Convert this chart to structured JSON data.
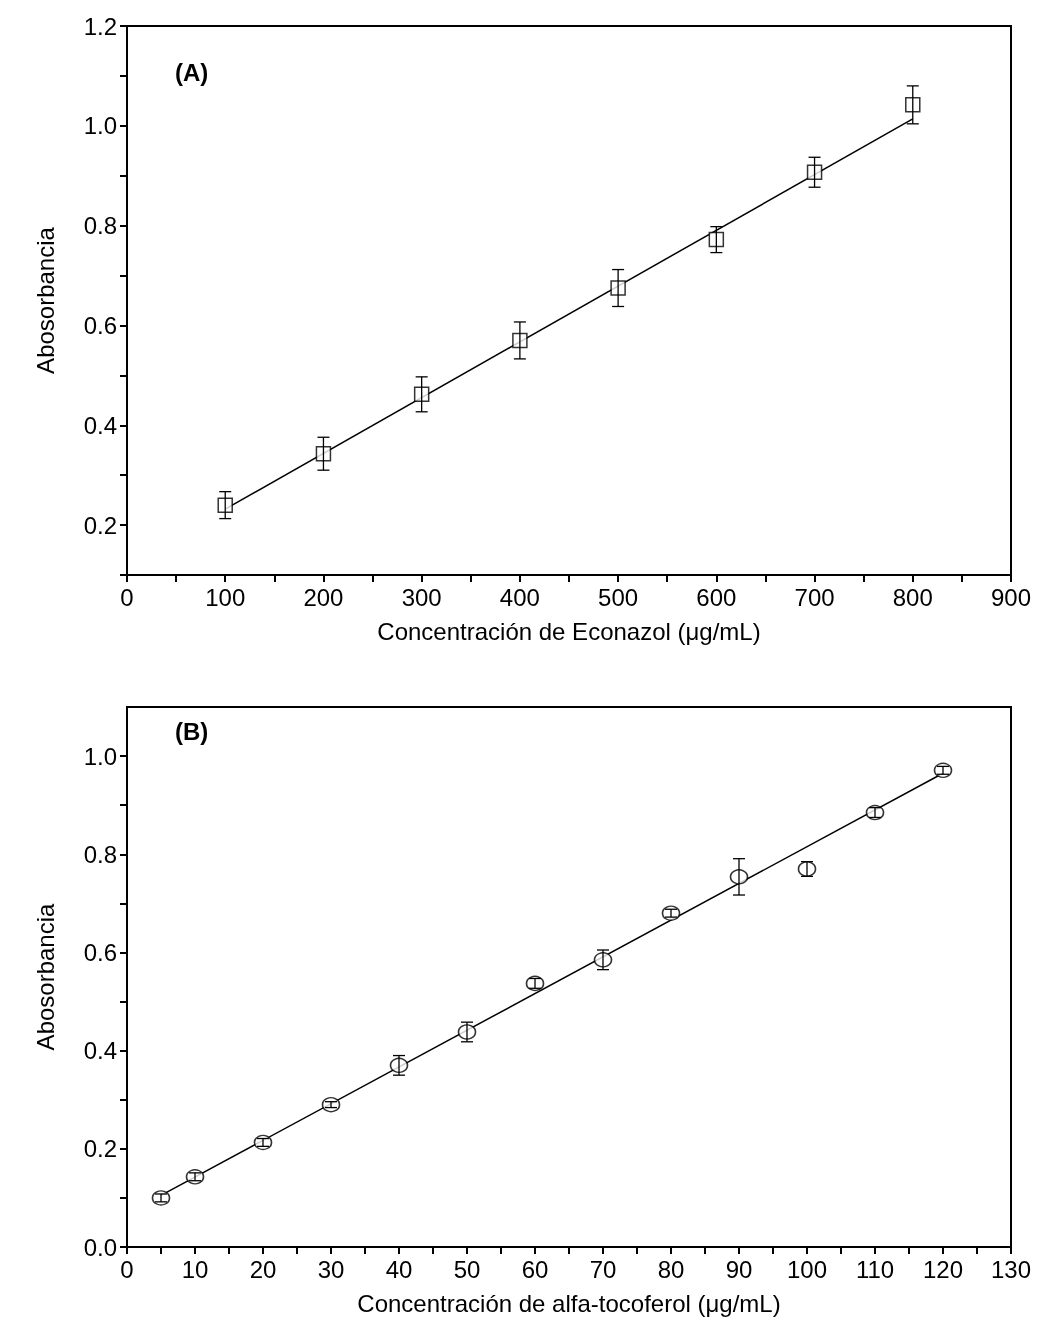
{
  "chart_data": [
    {
      "type": "scatter",
      "xlabel": "Concentración de Econazol (μg/mL)",
      "ylabel": "Abosorbancia",
      "annotations": [
        "(A)"
      ],
      "xlim": [
        0,
        900
      ],
      "xticks": [
        0,
        {
          "value": 50,
          "label": null
        },
        100,
        {
          "value": 150,
          "label": null
        },
        200,
        {
          "value": 250,
          "label": null
        },
        300,
        {
          "value": 350,
          "label": null
        },
        400,
        {
          "value": 450,
          "label": null
        },
        500,
        {
          "value": 550,
          "label": null
        },
        600,
        {
          "value": 650,
          "label": null
        },
        700,
        {
          "value": 750,
          "label": null
        },
        800,
        {
          "value": 850,
          "label": null
        },
        900
      ],
      "ylim": [
        0.1,
        1.2
      ],
      "yticks": [
        {
          "value": 0.1,
          "label": null
        },
        0.2,
        {
          "value": 0.3,
          "label": null
        },
        0.4,
        {
          "value": 0.5,
          "label": null
        },
        0.6,
        {
          "value": 0.7,
          "label": null
        },
        0.8,
        {
          "value": 0.9,
          "label": null
        },
        {
          "value": 1,
          "label": "1.0"
        },
        {
          "value": 1.1,
          "label": null
        },
        1.2
      ],
      "grid": false,
      "series": [
        {
          "color": "#000000",
          "marker": "square",
          "x": [
            100,
            200,
            300,
            400,
            500,
            600,
            700,
            800
          ],
          "values": [
            0.24,
            0.343,
            0.462,
            0.57,
            0.675,
            0.772,
            0.907,
            1.042
          ],
          "errors": [
            0.027,
            0.033,
            0.035,
            0.037,
            0.037,
            0.026,
            0.03,
            0.038
          ]
        },
        {
          "type": "line",
          "color": "#000000",
          "marker": "none",
          "line_style": "solid",
          "x": [
            100,
            800
          ],
          "values": [
            0.232,
            1.014
          ]
        }
      ]
    },
    {
      "type": "scatter",
      "xlabel": "Concentración de alfa-tocoferol (μg/mL)",
      "ylabel": "Abosorbancia",
      "annotations": [
        "(B)"
      ],
      "xlim": [
        0,
        130
      ],
      "xticks": [
        0,
        {
          "value": 5,
          "label": null
        },
        10,
        {
          "value": 15,
          "label": null
        },
        20,
        {
          "value": 25,
          "label": null
        },
        30,
        {
          "value": 35,
          "label": null
        },
        40,
        {
          "value": 45,
          "label": null
        },
        50,
        {
          "value": 55,
          "label": null
        },
        60,
        {
          "value": 65,
          "label": null
        },
        70,
        {
          "value": 75,
          "label": null
        },
        80,
        {
          "value": 85,
          "label": null
        },
        90,
        {
          "value": 95,
          "label": null
        },
        100,
        {
          "value": 105,
          "label": null
        },
        110,
        {
          "value": 115,
          "label": null
        },
        120,
        {
          "value": 125,
          "label": null
        },
        130
      ],
      "ylim": [
        0,
        1.1
      ],
      "yticks": [
        {
          "value": 0,
          "label": "0.0"
        },
        {
          "value": 0.1,
          "label": null
        },
        0.2,
        {
          "value": 0.3,
          "label": null
        },
        0.4,
        {
          "value": 0.5,
          "label": null
        },
        0.6,
        {
          "value": 0.7,
          "label": null
        },
        0.8,
        {
          "value": 0.9,
          "label": null
        },
        {
          "value": 1,
          "label": "1.0"
        }
      ],
      "grid": false,
      "series": [
        {
          "color": "#000000",
          "marker": "circle",
          "x": [
            5,
            10,
            20,
            30,
            40,
            50,
            60,
            70,
            80,
            90,
            100,
            110,
            120
          ],
          "values": [
            0.1,
            0.143,
            0.213,
            0.29,
            0.37,
            0.438,
            0.537,
            0.585,
            0.68,
            0.754,
            0.77,
            0.885,
            0.971
          ],
          "errors": [
            0.008,
            0.008,
            0.008,
            0.006,
            0.02,
            0.02,
            0.01,
            0.02,
            0.008,
            0.037,
            0.015,
            0.01,
            0.008
          ]
        },
        {
          "type": "line",
          "color": "#000000",
          "marker": "none",
          "line_style": "solid",
          "x": [
            5,
            120
          ],
          "values": [
            0.105,
            0.965
          ]
        }
      ]
    }
  ]
}
